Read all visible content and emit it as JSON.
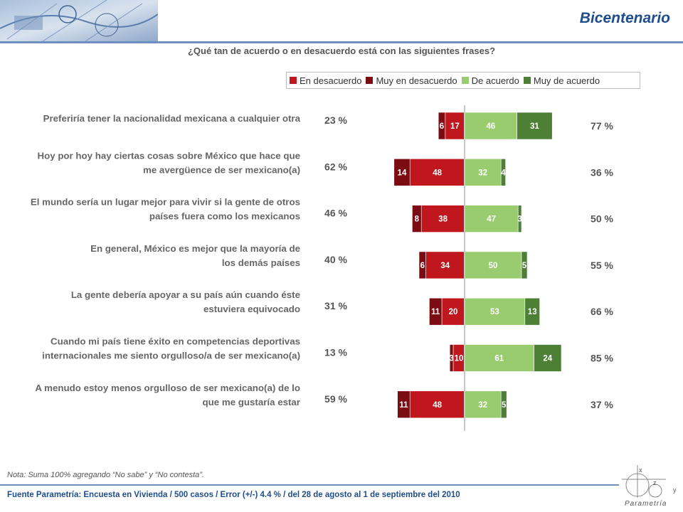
{
  "header": {
    "title": "Bicentenario"
  },
  "question": "¿Qué tan de acuerdo o en desacuerdo está con las siguientes frases?",
  "colors": {
    "en_desacuerdo": "#c0161d",
    "muy_en_desacuerdo": "#7b0c12",
    "de_acuerdo": "#99cc6f",
    "muy_de_acuerdo": "#4d8035"
  },
  "chart_data": {
    "type": "bar",
    "orientation": "horizontal-diverging",
    "legend": [
      "En desacuerdo",
      "Muy en desacuerdo",
      "De acuerdo",
      "Muy de acuerdo"
    ],
    "rows": [
      {
        "lines": [
          "Preferiría tener la nacionalidad mexicana a cualquier otra"
        ],
        "total_desacuerdo": "23 %",
        "total_acuerdo": "77 %",
        "muy_en_desacuerdo": 6,
        "en_desacuerdo": 17,
        "de_acuerdo": 46,
        "muy_de_acuerdo": 31
      },
      {
        "lines": [
          "Hoy por hoy hay ciertas cosas sobre México que hace que",
          "me avergüence de ser mexicano(a)"
        ],
        "total_desacuerdo": "62 %",
        "total_acuerdo": "36 %",
        "muy_en_desacuerdo": 14,
        "en_desacuerdo": 48,
        "de_acuerdo": 32,
        "muy_de_acuerdo": 4
      },
      {
        "lines": [
          "El mundo sería un lugar mejor para vivir si la gente de otros",
          "países fuera como los mexicanos"
        ],
        "total_desacuerdo": "46 %",
        "total_acuerdo": "50 %",
        "muy_en_desacuerdo": 8,
        "en_desacuerdo": 38,
        "de_acuerdo": 47,
        "muy_de_acuerdo": 3
      },
      {
        "lines": [
          "En general, México es mejor que la mayoría de",
          "los demás países"
        ],
        "total_desacuerdo": "40 %",
        "total_acuerdo": "55 %",
        "muy_en_desacuerdo": 6,
        "en_desacuerdo": 34,
        "de_acuerdo": 50,
        "muy_de_acuerdo": 5
      },
      {
        "lines": [
          "La gente debería apoyar a su país aún cuando éste",
          "estuviera equivocado"
        ],
        "total_desacuerdo": "31 %",
        "total_acuerdo": "66 %",
        "muy_en_desacuerdo": 11,
        "en_desacuerdo": 20,
        "de_acuerdo": 53,
        "muy_de_acuerdo": 13
      },
      {
        "lines": [
          "Cuando mi país tiene éxito en competencias deportivas",
          "internacionales me siento orgulloso/a de ser mexicano(a)"
        ],
        "total_desacuerdo": "13 %",
        "total_acuerdo": "85 %",
        "muy_en_desacuerdo": 3,
        "en_desacuerdo": 10,
        "de_acuerdo": 61,
        "muy_de_acuerdo": 24
      },
      {
        "lines": [
          "A menudo estoy menos orgulloso de ser mexicano(a) de lo",
          "que me gustaría estar"
        ],
        "total_desacuerdo": "59 %",
        "total_acuerdo": "37 %",
        "muy_en_desacuerdo": 11,
        "en_desacuerdo": 48,
        "de_acuerdo": 32,
        "muy_de_acuerdo": 5
      }
    ]
  },
  "note": "Nota: Suma 100%  agregando “No sabe” y “No contesta”.",
  "footer": "Fuente Parametría: Encuesta en Vivienda / 500 casos / Error (+/-) 4.4 % / del 28 de agosto al 1 de septiembre del 2010",
  "logo": {
    "axis_x": "x",
    "axis_y": "y",
    "axis_z": "z",
    "name": "Parametría"
  }
}
